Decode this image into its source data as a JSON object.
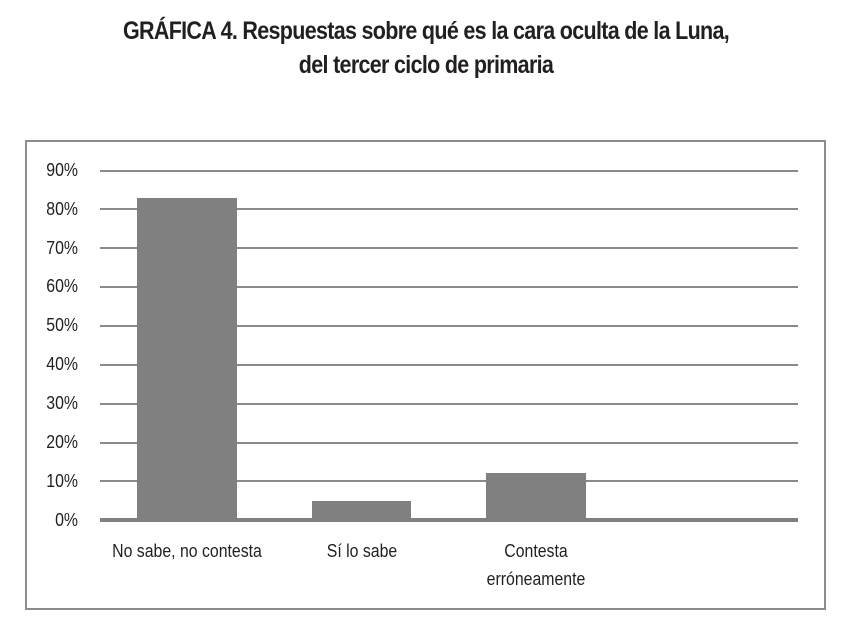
{
  "title": {
    "prefix": "GRÁFICA 4.",
    "line1": " Respuestas sobre qué es la cara oculta de la Luna,",
    "line2": "del tercer ciclo de primaria"
  },
  "colors": {
    "bar": "#808080",
    "grid": "#8a8a8a",
    "frame": "#8c8c8c",
    "text": "#231f20"
  },
  "chart_data": {
    "type": "bar",
    "title": "GRÁFICA 4. Respuestas sobre qué es la cara oculta de la Luna, del tercer ciclo de primaria",
    "categories": [
      "No sabe, no contesta",
      "Sí lo sabe",
      "Contesta erróneamente",
      ""
    ],
    "values": [
      83,
      5,
      12,
      0
    ],
    "xlabel": "",
    "ylabel": "",
    "ylim": [
      0,
      90
    ],
    "yticks": [
      "0%",
      "10%",
      "20%",
      "30%",
      "40%",
      "50%",
      "60%",
      "70%",
      "80%",
      "90%"
    ],
    "grid": true,
    "legend": null,
    "unit": "%"
  },
  "yaxis": {
    "ticks": [
      "90%",
      "80%",
      "70%",
      "60%",
      "50%",
      "40%",
      "30%",
      "20%",
      "10%",
      "0%"
    ]
  },
  "xaxis": {
    "labels": [
      {
        "line1": "No sabe, no contesta",
        "line2": ""
      },
      {
        "line1": "Sí lo sabe",
        "line2": ""
      },
      {
        "line1": "Contesta",
        "line2": "erróneamente"
      }
    ]
  }
}
